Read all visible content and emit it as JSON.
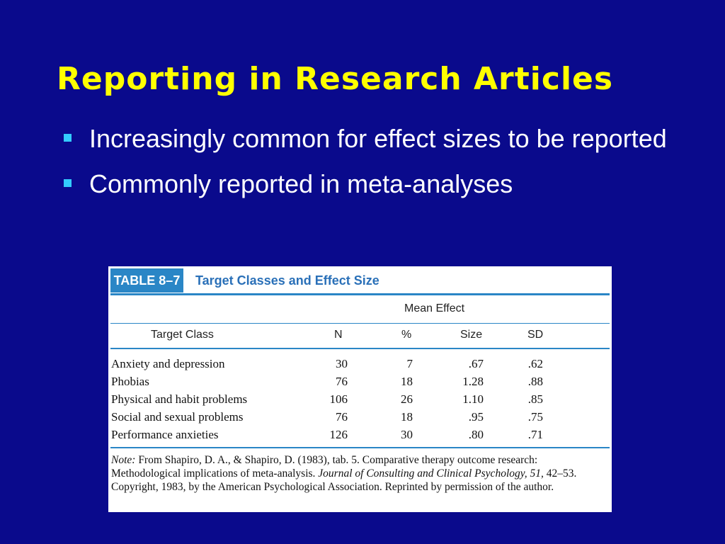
{
  "slide": {
    "title": "Reporting in Research Articles",
    "bullets": [
      "Increasingly common for effect sizes to be reported",
      "Commonly reported in meta-analyses"
    ],
    "colors": {
      "background": "#0a0a8c",
      "title": "#ffff00",
      "bullet_marker": "#33ccff",
      "table_accent": "#2a86c6"
    }
  },
  "table": {
    "label": "TABLE 8–7",
    "caption": "Target Classes and Effect Size",
    "group_header": "Mean Effect",
    "columns": [
      "Target Class",
      "N",
      "%",
      "Size",
      "SD"
    ],
    "rows": [
      [
        "Anxiety and depression",
        "30",
        "7",
        ".67",
        ".62"
      ],
      [
        "Phobias",
        "76",
        "18",
        "1.28",
        ".88"
      ],
      [
        "Physical and habit problems",
        "106",
        "26",
        "1.10",
        ".85"
      ],
      [
        "Social and sexual problems",
        "76",
        "18",
        ".95",
        ".75"
      ],
      [
        "Performance anxieties",
        "126",
        "30",
        ".80",
        ".71"
      ]
    ],
    "note": {
      "label": "Note:",
      "text1": " From Shapiro, D. A., & Shapiro, D. (1983), tab. 5. Comparative therapy outcome research: Methodological implications of meta-analysis. ",
      "journal": "Journal of Consulting and Clinical Psychology, 51,",
      "text2": " 42–53. Copyright, 1983, by the American Psychological Association. Reprinted by permission of the author."
    }
  }
}
